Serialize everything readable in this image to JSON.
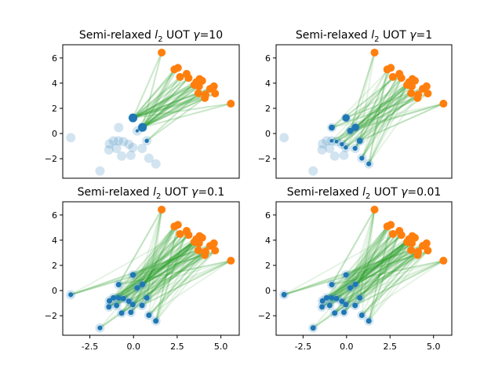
{
  "chart_data": [
    {
      "type": "scatter",
      "title_prefix": "Semi-relaxed ",
      "title_l": "l",
      "title_sub": "2",
      "title_mid": " UOT ",
      "title_gamma": "γ",
      "title_eq": "=10",
      "source_mass": [
        0,
        0,
        0,
        0,
        0,
        0,
        0,
        0,
        0,
        0,
        0,
        0,
        0,
        1,
        0.15,
        1,
        0,
        0.3,
        0,
        0
      ]
    },
    {
      "type": "scatter",
      "title_prefix": "Semi-relaxed ",
      "title_l": "l",
      "title_sub": "2",
      "title_mid": " UOT ",
      "title_gamma": "γ",
      "title_eq": "=1",
      "source_mass": [
        0,
        0,
        0,
        0,
        0,
        0.2,
        0,
        0.2,
        0,
        0.6,
        0.3,
        0.3,
        0,
        0.8,
        0.6,
        0.8,
        0.4,
        0.6,
        0.4,
        0.4
      ]
    },
    {
      "type": "scatter",
      "title_prefix": "Semi-relaxed ",
      "title_l": "l",
      "title_sub": "2",
      "title_mid": " UOT ",
      "title_gamma": "γ",
      "title_eq": "=0.1",
      "source_mass": [
        0.4,
        0.4,
        0.5,
        0.5,
        0.5,
        0.5,
        0.5,
        0.5,
        0.5,
        0.5,
        0.5,
        0.5,
        0.5,
        0.55,
        0.5,
        0.55,
        0.5,
        0.5,
        0.5,
        0.5
      ]
    },
    {
      "type": "scatter",
      "title_prefix": "Semi-relaxed ",
      "title_l": "l",
      "title_sub": "2",
      "title_mid": " UOT ",
      "title_gamma": "γ",
      "title_eq": "=0.01",
      "source_mass": [
        0.5,
        0.5,
        0.5,
        0.5,
        0.5,
        0.5,
        0.5,
        0.5,
        0.5,
        0.5,
        0.5,
        0.5,
        0.5,
        0.5,
        0.5,
        0.5,
        0.5,
        0.5,
        0.5,
        0.5
      ]
    }
  ],
  "shared": {
    "xlim": [
      -4.05,
      6.05
    ],
    "ylim": [
      -3.55,
      7.05
    ],
    "xticks": [
      "-2.5",
      "0.0",
      "2.5",
      "5.0"
    ],
    "xtick_values": [
      -2.5,
      0,
      2.5,
      5
    ],
    "yticks": [
      "−2",
      "0",
      "2",
      "4",
      "6"
    ],
    "ytick_values": [
      -2,
      0,
      2,
      4,
      6
    ],
    "source_points": [
      [
        -3.59,
        -0.33
      ],
      [
        -1.92,
        -2.97
      ],
      [
        -1.38,
        -0.82
      ],
      [
        -1.41,
        -1.3
      ],
      [
        -1.15,
        -0.58
      ],
      [
        -0.86,
        -0.58
      ],
      [
        -0.97,
        -1.18
      ],
      [
        -0.58,
        -0.64
      ],
      [
        -0.68,
        -1.79
      ],
      [
        -0.85,
        0.47
      ],
      [
        -0.27,
        -0.85
      ],
      [
        -0.04,
        -1.11
      ],
      [
        -0.15,
        -1.73
      ],
      [
        -0.03,
        1.24
      ],
      [
        0.21,
        0.21
      ],
      [
        0.51,
        0.49
      ],
      [
        0.49,
        -1.18
      ],
      [
        0.76,
        -0.58
      ],
      [
        0.88,
        -1.96
      ],
      [
        1.28,
        -2.41
      ]
    ],
    "target_points": [
      [
        1.61,
        6.43
      ],
      [
        2.34,
        5.09
      ],
      [
        2.54,
        5.22
      ],
      [
        2.66,
        4.49
      ],
      [
        3.04,
        4.74
      ],
      [
        3.15,
        4.41
      ],
      [
        3.48,
        3.86
      ],
      [
        3.59,
        4.08
      ],
      [
        3.78,
        4.33
      ],
      [
        3.93,
        4.19
      ],
      [
        3.75,
        3.75
      ],
      [
        3.71,
        3.2
      ],
      [
        4.08,
        2.82
      ],
      [
        4.12,
        3.09
      ],
      [
        4.38,
        3.55
      ],
      [
        4.6,
        3.75
      ],
      [
        4.67,
        3.18
      ],
      [
        5.57,
        2.37
      ]
    ],
    "colors": {
      "source": "#1f77b4",
      "target": "#ff7f0e",
      "plan": "#2ca02c"
    },
    "grid": false
  }
}
